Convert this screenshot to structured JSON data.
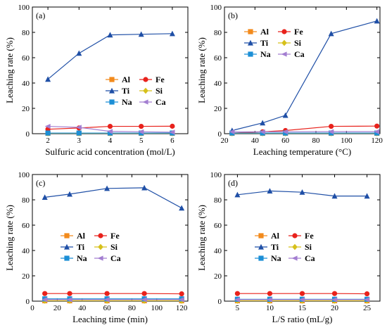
{
  "colors": {
    "Al": "#f28a1c",
    "Fe": "#e8221c",
    "Ti": "#1f4fa6",
    "Si": "#d6c01a",
    "Na": "#1c8fd6",
    "Ca": "#a37ed1"
  },
  "markers": {
    "Al": "square",
    "Fe": "circle",
    "Ti": "triangle",
    "Si": "diamond",
    "Na": "square",
    "Ca": "triangle-left"
  },
  "chart_data": [
    {
      "type": "line",
      "panel": "(a)",
      "xlabel": "Sulfuric acid concentration (mol/L)",
      "ylabel": "Leaching rate (%)",
      "xlim": [
        1.5,
        6.5
      ],
      "ylim": [
        0,
        100
      ],
      "xticks": [
        2,
        3,
        4,
        5,
        6
      ],
      "yticks": [
        0,
        20,
        40,
        60,
        80,
        100
      ],
      "legend_position": "center-right",
      "x": [
        2,
        3,
        4,
        5,
        6
      ],
      "series": [
        {
          "name": "Al",
          "values": [
            0.3,
            0.3,
            0.3,
            0.3,
            0.3
          ]
        },
        {
          "name": "Fe",
          "values": [
            3.5,
            4.5,
            5.8,
            5.8,
            5.9
          ]
        },
        {
          "name": "Ti",
          "values": [
            43,
            63.5,
            78,
            78.5,
            79
          ]
        },
        {
          "name": "Si",
          "values": [
            0.3,
            0.3,
            0.3,
            0.3,
            0.3
          ]
        },
        {
          "name": "Na",
          "values": [
            0.5,
            0.5,
            0.5,
            0.5,
            0.5
          ]
        },
        {
          "name": "Ca",
          "values": [
            5.8,
            5,
            1.8,
            1.5,
            1.2
          ]
        }
      ]
    },
    {
      "type": "line",
      "panel": "(b)",
      "xlabel": "Leaching temperature (°C)",
      "ylabel": "Leaching rate (%)",
      "xlim": [
        20,
        122
      ],
      "ylim": [
        0,
        100
      ],
      "xticks": [
        20,
        40,
        60,
        80,
        100,
        120
      ],
      "yticks": [
        0,
        20,
        40,
        60,
        80,
        100
      ],
      "legend_position": "top-left",
      "x": [
        25,
        45,
        60,
        90,
        120
      ],
      "series": [
        {
          "name": "Al",
          "values": [
            0.3,
            0.3,
            0.3,
            0.3,
            0.3
          ]
        },
        {
          "name": "Fe",
          "values": [
            0.5,
            1.5,
            2.5,
            5.8,
            6
          ]
        },
        {
          "name": "Ti",
          "values": [
            2.5,
            8.5,
            14.5,
            79,
            89
          ]
        },
        {
          "name": "Si",
          "values": [
            0.3,
            0.3,
            0.3,
            0.3,
            0.3
          ]
        },
        {
          "name": "Na",
          "values": [
            0.5,
            0.5,
            0.5,
            0.5,
            0.5
          ]
        },
        {
          "name": "Ca",
          "values": [
            1.5,
            1.5,
            1.5,
            1.6,
            1.6
          ]
        }
      ]
    },
    {
      "type": "line",
      "panel": "(c)",
      "xlabel": "Leaching time (min)",
      "ylabel": "Leaching rate (%)",
      "xlim": [
        0,
        125
      ],
      "ylim": [
        0,
        100
      ],
      "xticks": [
        0,
        20,
        40,
        60,
        80,
        100,
        120
      ],
      "yticks": [
        0,
        20,
        40,
        60,
        80,
        100
      ],
      "legend_position": "center",
      "x": [
        10,
        30,
        60,
        90,
        120
      ],
      "series": [
        {
          "name": "Al",
          "values": [
            0.3,
            0.3,
            0.3,
            0.3,
            0.3
          ]
        },
        {
          "name": "Fe",
          "values": [
            6,
            6,
            6,
            6,
            5.8
          ]
        },
        {
          "name": "Ti",
          "values": [
            82,
            84.5,
            89,
            89.5,
            73.5
          ]
        },
        {
          "name": "Si",
          "values": [
            0.3,
            0.3,
            0.3,
            0.3,
            0.3
          ]
        },
        {
          "name": "Na",
          "values": [
            1.8,
            1.8,
            1.8,
            1.8,
            1.8
          ]
        },
        {
          "name": "Ca",
          "values": [
            1.2,
            1.2,
            1.2,
            1.2,
            1.2
          ]
        }
      ]
    },
    {
      "type": "line",
      "panel": "(d)",
      "xlabel": "L/S ratio (mL/g)",
      "ylabel": "Leaching rate (%)",
      "xlim": [
        3,
        27
      ],
      "ylim": [
        0,
        100
      ],
      "xticks": [
        5,
        10,
        15,
        20,
        25
      ],
      "yticks": [
        0,
        20,
        40,
        60,
        80,
        100
      ],
      "legend_position": "center",
      "x": [
        5,
        10,
        15,
        20,
        25
      ],
      "series": [
        {
          "name": "Al",
          "values": [
            0.3,
            0.3,
            0.3,
            0.3,
            0.3
          ]
        },
        {
          "name": "Fe",
          "values": [
            6,
            6,
            6,
            6,
            5.8
          ]
        },
        {
          "name": "Ti",
          "values": [
            84,
            87,
            86,
            83,
            83
          ]
        },
        {
          "name": "Si",
          "values": [
            0.3,
            0.3,
            0.3,
            0.3,
            0.3
          ]
        },
        {
          "name": "Na",
          "values": [
            1.5,
            1.5,
            1.5,
            1.5,
            1.5
          ]
        },
        {
          "name": "Ca",
          "values": [
            1.2,
            1.2,
            1.2,
            1.2,
            1.2
          ]
        }
      ]
    }
  ]
}
